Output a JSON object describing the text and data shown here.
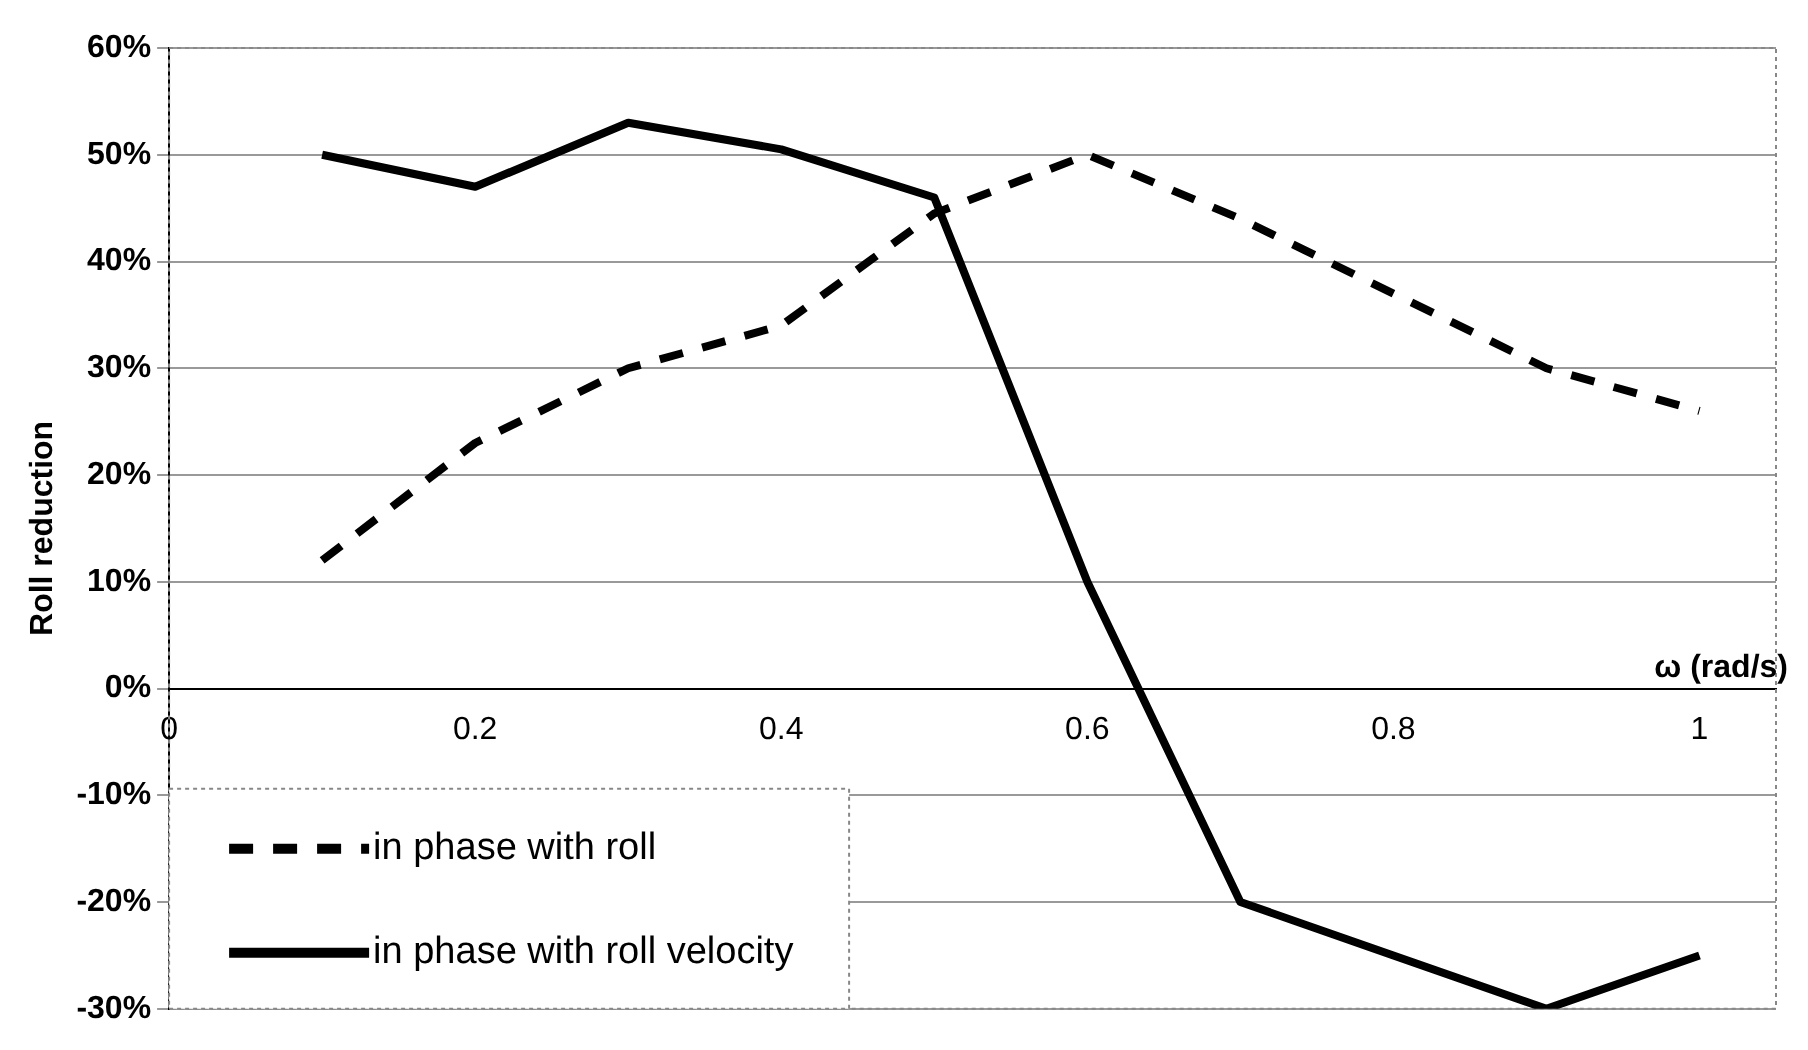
{
  "chart_data": {
    "type": "line",
    "xlabel": "ω (rad/s)",
    "ylabel": "Roll reduction",
    "xlim": [
      0,
      1.05
    ],
    "xticks": [
      0,
      0.2,
      0.4,
      0.6,
      0.8,
      1
    ],
    "ylim": [
      -30,
      60
    ],
    "yticks": [
      {
        "value": -30,
        "label": "-30%"
      },
      {
        "value": -20,
        "label": "-20%"
      },
      {
        "value": -10,
        "label": "-10%"
      },
      {
        "value": 0,
        "label": "0%"
      },
      {
        "value": 10,
        "label": "10%"
      },
      {
        "value": 20,
        "label": "20%"
      },
      {
        "value": 30,
        "label": "30%"
      },
      {
        "value": 40,
        "label": "40%"
      },
      {
        "value": 50,
        "label": "50%"
      },
      {
        "value": 60,
        "label": "60%"
      }
    ],
    "x": [
      0.1,
      0.2,
      0.3,
      0.4,
      0.5,
      0.6,
      0.7,
      0.8,
      0.9,
      1.0
    ],
    "series": [
      {
        "name": "in phase with roll",
        "color": "#000000",
        "line_style": "dashed",
        "values": [
          12,
          23,
          30,
          34,
          44.5,
          50,
          44,
          37,
          30,
          26
        ]
      },
      {
        "name": "in phase with roll velocity",
        "color": "#000000",
        "line_style": "solid",
        "values": [
          50,
          47,
          53,
          50.5,
          46,
          10,
          -20,
          -25,
          -30,
          -25
        ]
      }
    ],
    "grid": "y",
    "legend": "bottom left",
    "marker": "none"
  }
}
